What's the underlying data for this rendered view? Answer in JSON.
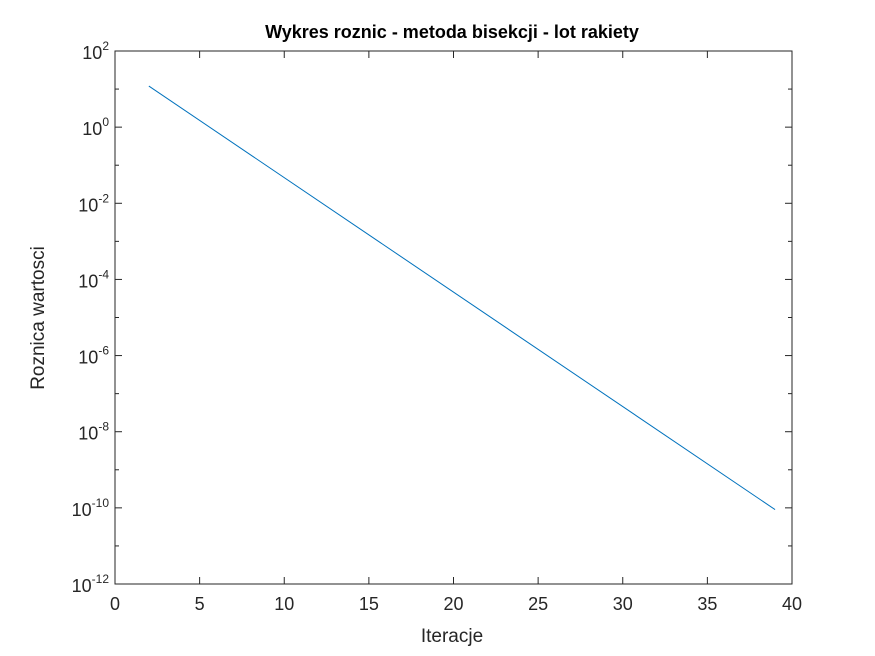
{
  "chart_data": {
    "type": "line",
    "title": "Wykres roznic - metoda bisekcji - lot rakiety",
    "xlabel": "Iteracje",
    "ylabel": "Roznica wartosci",
    "xlim": [
      0,
      40
    ],
    "ylim": [
      1e-12,
      100
    ],
    "yscale": "log",
    "grid": false,
    "xticks": [
      0,
      5,
      10,
      15,
      20,
      25,
      30,
      35,
      40
    ],
    "xtick_labels": [
      "0",
      "5",
      "10",
      "15",
      "20",
      "25",
      "30",
      "35",
      "40"
    ],
    "yticks": [
      1e-12,
      1e-10,
      1e-08,
      1e-06,
      0.0001,
      0.01,
      1,
      100
    ],
    "ytick_labels": [
      {
        "base": "10",
        "exp": "-12"
      },
      {
        "base": "10",
        "exp": "-10"
      },
      {
        "base": "10",
        "exp": "-8"
      },
      {
        "base": "10",
        "exp": "-6"
      },
      {
        "base": "10",
        "exp": "-4"
      },
      {
        "base": "10",
        "exp": "-2"
      },
      {
        "base": "10",
        "exp": "0"
      },
      {
        "base": "10",
        "exp": "2"
      }
    ],
    "series": [
      {
        "color": "#0072BD",
        "x": [
          2,
          39
        ],
        "y": [
          12,
          9e-11
        ]
      }
    ]
  }
}
